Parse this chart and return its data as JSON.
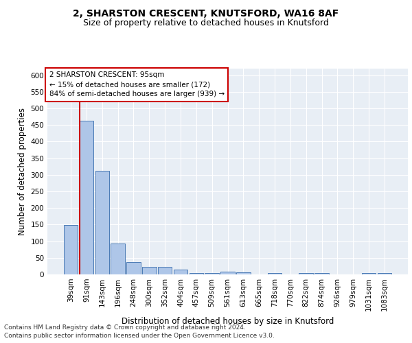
{
  "title1": "2, SHARSTON CRESCENT, KNUTSFORD, WA16 8AF",
  "title2": "Size of property relative to detached houses in Knutsford",
  "xlabel": "Distribution of detached houses by size in Knutsford",
  "ylabel": "Number of detached properties",
  "bar_labels": [
    "39sqm",
    "91sqm",
    "143sqm",
    "196sqm",
    "248sqm",
    "300sqm",
    "352sqm",
    "404sqm",
    "457sqm",
    "509sqm",
    "561sqm",
    "613sqm",
    "665sqm",
    "718sqm",
    "770sqm",
    "822sqm",
    "874sqm",
    "926sqm",
    "979sqm",
    "1031sqm",
    "1083sqm"
  ],
  "bar_values": [
    148,
    462,
    312,
    93,
    37,
    22,
    22,
    14,
    5,
    5,
    9,
    6,
    0,
    5,
    0,
    5,
    5,
    0,
    0,
    5,
    5
  ],
  "bar_color": "#aec6e8",
  "bar_edge_color": "#4a7ab5",
  "red_line_index": 1,
  "annotation_text": "2 SHARSTON CRESCENT: 95sqm\n← 15% of detached houses are smaller (172)\n84% of semi-detached houses are larger (939) →",
  "annotation_box_color": "white",
  "annotation_box_edge_color": "#cc0000",
  "red_line_color": "#cc0000",
  "ylim": [
    0,
    620
  ],
  "yticks": [
    0,
    50,
    100,
    150,
    200,
    250,
    300,
    350,
    400,
    450,
    500,
    550,
    600
  ],
  "bg_color": "#e8eef5",
  "grid_color": "white",
  "footer1": "Contains HM Land Registry data © Crown copyright and database right 2024.",
  "footer2": "Contains public sector information licensed under the Open Government Licence v3.0.",
  "title1_fontsize": 10,
  "title2_fontsize": 9,
  "xlabel_fontsize": 8.5,
  "ylabel_fontsize": 8.5,
  "tick_fontsize": 7.5,
  "annotation_fontsize": 7.5,
  "footer_fontsize": 6.5
}
